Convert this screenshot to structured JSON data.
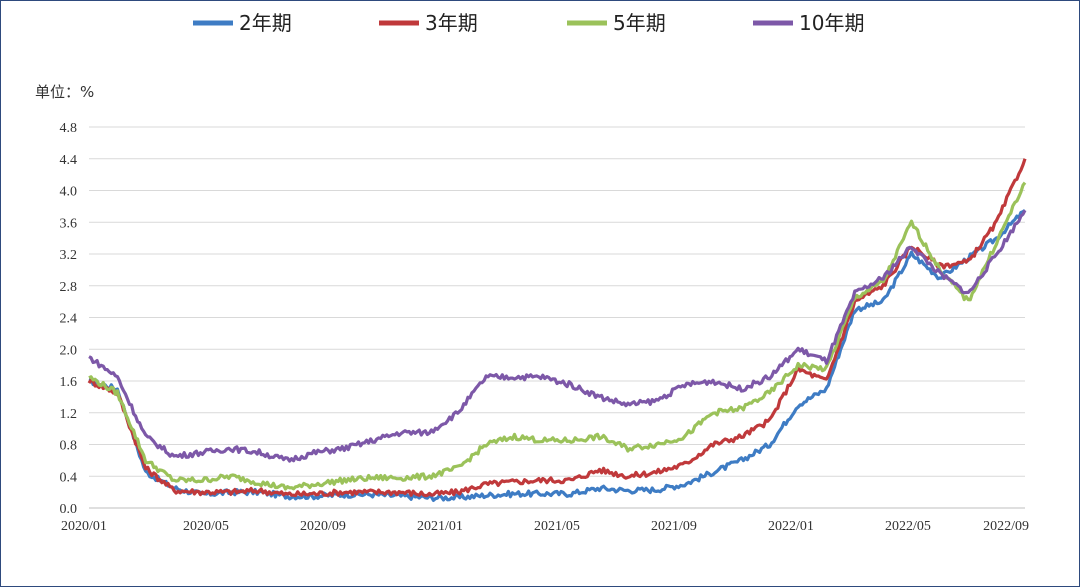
{
  "chart_data": {
    "type": "line",
    "unit_label": "单位：%",
    "ylim": [
      0,
      4.8
    ],
    "yticks": [
      "0.0",
      "0.4",
      "0.8",
      "1.2",
      "1.6",
      "2.0",
      "2.4",
      "2.8",
      "3.2",
      "3.6",
      "4.0",
      "4.4",
      "4.8"
    ],
    "xticks": [
      "2020/01",
      "2020/05",
      "2020/09",
      "2021/01",
      "2021/05",
      "2021/09",
      "2022/01",
      "2022/05",
      "2022/09"
    ],
    "x_range": [
      "2020/01",
      "2022/09"
    ],
    "grid": true,
    "legend_position": "top",
    "x": [
      "2020/01",
      "2020/02",
      "2020/03",
      "2020/04",
      "2020/05",
      "2020/06",
      "2020/07",
      "2020/08",
      "2020/09",
      "2020/10",
      "2020/11",
      "2020/12",
      "2021/01",
      "2021/02",
      "2021/03",
      "2021/04",
      "2021/05",
      "2021/06",
      "2021/07",
      "2021/08",
      "2021/09",
      "2021/10",
      "2021/11",
      "2021/12",
      "2022/01",
      "2022/02",
      "2022/03",
      "2022/04",
      "2022/05",
      "2022/06",
      "2022/07",
      "2022/08",
      "2022/09",
      "2022/09 end"
    ],
    "series": [
      {
        "name": "2年期",
        "color": "#3e7cc4",
        "values": [
          1.6,
          1.5,
          0.45,
          0.25,
          0.17,
          0.2,
          0.2,
          0.15,
          0.15,
          0.17,
          0.17,
          0.15,
          0.13,
          0.13,
          0.16,
          0.18,
          0.18,
          0.18,
          0.25,
          0.22,
          0.23,
          0.3,
          0.45,
          0.6,
          0.8,
          1.3,
          1.5,
          2.5,
          2.6,
          3.2,
          2.9,
          3.15,
          3.4,
          3.75
        ]
      },
      {
        "name": "3年期",
        "color": "#c0393b",
        "values": [
          1.6,
          1.45,
          0.5,
          0.22,
          0.2,
          0.2,
          0.22,
          0.17,
          0.18,
          0.2,
          0.2,
          0.2,
          0.17,
          0.2,
          0.3,
          0.33,
          0.35,
          0.35,
          0.48,
          0.4,
          0.45,
          0.55,
          0.8,
          0.9,
          1.1,
          1.75,
          1.6,
          2.6,
          2.8,
          3.3,
          3.05,
          3.1,
          3.6,
          4.4
        ]
      },
      {
        "name": "5年期",
        "color": "#9bc25a",
        "values": [
          1.65,
          1.45,
          0.6,
          0.35,
          0.35,
          0.4,
          0.32,
          0.25,
          0.3,
          0.35,
          0.38,
          0.38,
          0.4,
          0.5,
          0.8,
          0.9,
          0.85,
          0.85,
          0.9,
          0.75,
          0.8,
          0.9,
          1.2,
          1.25,
          1.45,
          1.8,
          1.75,
          2.65,
          2.85,
          3.6,
          3.0,
          2.6,
          3.35,
          4.1
        ]
      },
      {
        "name": "10年期",
        "color": "#7d58a8",
        "values": [
          1.9,
          1.65,
          0.9,
          0.65,
          0.7,
          0.75,
          0.7,
          0.6,
          0.7,
          0.75,
          0.85,
          0.95,
          0.95,
          1.2,
          1.65,
          1.65,
          1.65,
          1.55,
          1.4,
          1.3,
          1.35,
          1.55,
          1.6,
          1.5,
          1.65,
          2.0,
          1.85,
          2.7,
          2.9,
          3.3,
          2.95,
          2.7,
          3.2,
          3.75
        ]
      }
    ]
  }
}
